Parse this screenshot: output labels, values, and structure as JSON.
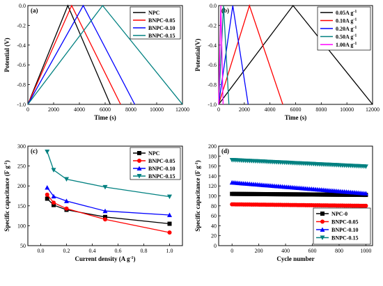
{
  "chart_data": [
    {
      "panel": "(a)",
      "type": "line",
      "xlabel": "Time (s)",
      "ylabel": "Potential (V)",
      "xlim": [
        0,
        12000
      ],
      "ylim": [
        -1.0,
        0.0
      ],
      "xticks": [
        0,
        2000,
        4000,
        6000,
        8000,
        10000,
        12000
      ],
      "yticks": [
        0.0,
        -0.2,
        -0.4,
        -0.6,
        -0.8,
        -1.0
      ],
      "ytick_labels": [
        "0.0",
        "-0.2",
        "-0.4",
        "-0.6",
        "-0.8",
        "-1.0"
      ],
      "legend_position": "top-right",
      "series": [
        {
          "name": "NPC",
          "color": "#000000",
          "x": [
            0,
            3100,
            6400
          ],
          "y": [
            -1.0,
            0.0,
            -1.0
          ]
        },
        {
          "name": "BNPC-0.05",
          "color": "#ff0000",
          "x": [
            0,
            3400,
            7200
          ],
          "y": [
            -1.0,
            0.0,
            -1.0
          ]
        },
        {
          "name": "BNPC-0.10",
          "color": "#0000ff",
          "x": [
            0,
            4300,
            8300
          ],
          "y": [
            -1.0,
            0.0,
            -1.0
          ]
        },
        {
          "name": "BNPC-0.15",
          "color": "#008080",
          "x": [
            0,
            5800,
            12000
          ],
          "y": [
            -1.0,
            0.0,
            -1.0
          ]
        }
      ]
    },
    {
      "panel": "(b)",
      "type": "line",
      "xlabel": "Time (s)",
      "ylabel": "Potential(V)",
      "xlim": [
        0,
        12000
      ],
      "ylim": [
        -1.0,
        0.0
      ],
      "xticks": [
        0,
        2000,
        4000,
        6000,
        8000,
        10000,
        12000
      ],
      "yticks": [
        0.0,
        -0.2,
        -0.4,
        -0.6,
        -0.8,
        -1.0
      ],
      "ytick_labels": [
        "0.0",
        "-0.2",
        "-0.4",
        "-0.6",
        "-0.8",
        "-1.0"
      ],
      "legend_position": "top-right",
      "legend_unit": "A g",
      "legend_sup": "-1",
      "series": [
        {
          "name": "0.05",
          "color": "#000000",
          "x": [
            0,
            5800,
            12000
          ],
          "y": [
            -1.0,
            0.0,
            -1.0
          ]
        },
        {
          "name": "0.10",
          "color": "#ff0000",
          "x": [
            0,
            2400,
            5000
          ],
          "y": [
            -1.0,
            0.0,
            -1.0
          ]
        },
        {
          "name": "0.20",
          "color": "#0000ff",
          "x": [
            0,
            1100,
            2300
          ],
          "y": [
            -1.0,
            0.0,
            -1.0
          ]
        },
        {
          "name": "0.50",
          "color": "#008080",
          "x": [
            0,
            380,
            800
          ],
          "y": [
            -1.0,
            0.0,
            -1.0
          ]
        },
        {
          "name": "1.00",
          "color": "#ff00ff",
          "x": [
            0,
            170,
            350
          ],
          "y": [
            -1.0,
            0.0,
            -1.0
          ]
        }
      ]
    },
    {
      "panel": "(c)",
      "type": "line",
      "xlabel": "Current density (A g",
      "xlabel_sup": "-1",
      "xlabel_end": ")",
      "ylabel": "Specific capacitance (F g",
      "ylabel_sup": "-1",
      "ylabel_end": ")",
      "xlim": [
        -0.1,
        1.1
      ],
      "ylim": [
        50,
        300
      ],
      "xticks": [
        0.0,
        0.2,
        0.4,
        0.6,
        0.8,
        1.0
      ],
      "xtick_labels": [
        "0.0",
        "0.2",
        "0.4",
        "0.6",
        "0.8",
        "1.0"
      ],
      "yticks": [
        50,
        100,
        150,
        200,
        250,
        300
      ],
      "legend_position": "top-right",
      "series": [
        {
          "name": "NPC",
          "color": "#000000",
          "marker": "square",
          "x": [
            0.05,
            0.1,
            0.2,
            0.5,
            1.0
          ],
          "y": [
            168,
            152,
            140,
            122,
            105
          ]
        },
        {
          "name": "BNPC-0.05",
          "color": "#ff0000",
          "marker": "circle",
          "x": [
            0.05,
            0.1,
            0.2,
            0.5,
            1.0
          ],
          "y": [
            178,
            158,
            143,
            116,
            83
          ]
        },
        {
          "name": "BNPC-0.10",
          "color": "#0000ff",
          "marker": "triangle-up",
          "x": [
            0.05,
            0.1,
            0.2,
            0.5,
            1.0
          ],
          "y": [
            196,
            174,
            162,
            137,
            127
          ]
        },
        {
          "name": "BNPC-0.15",
          "color": "#008080",
          "marker": "triangle-down",
          "x": [
            0.05,
            0.1,
            0.2,
            0.5,
            1.0
          ],
          "y": [
            286,
            240,
            217,
            197,
            173
          ]
        }
      ]
    },
    {
      "panel": "(d)",
      "type": "scatter",
      "xlabel": "Cycle number",
      "ylabel": "Specific capacitance (F g",
      "ylabel_sup": "-1",
      "ylabel_end": ")",
      "xlim": [
        -100,
        1050
      ],
      "ylim": [
        0,
        200
      ],
      "xticks": [
        0,
        200,
        400,
        600,
        800,
        1000
      ],
      "yticks": [
        0,
        20,
        40,
        60,
        80,
        100,
        120,
        140,
        160,
        180,
        200
      ],
      "legend_position": "bottom-right",
      "series": [
        {
          "name": "NPC-0",
          "color": "#000000",
          "marker": "square",
          "x": [
            0,
            1000
          ],
          "y": [
            104,
            102
          ]
        },
        {
          "name": "BNPC-0.05",
          "color": "#ff0000",
          "marker": "circle",
          "x": [
            0,
            1000
          ],
          "y": [
            83,
            80
          ]
        },
        {
          "name": "BNPC-0.10",
          "color": "#0000ff",
          "marker": "triangle-up",
          "x": [
            0,
            1000
          ],
          "y": [
            127,
            105
          ]
        },
        {
          "name": "BNPC-0.15",
          "color": "#008080",
          "marker": "triangle-down",
          "x": [
            0,
            1000
          ],
          "y": [
            172,
            159
          ]
        }
      ]
    }
  ]
}
